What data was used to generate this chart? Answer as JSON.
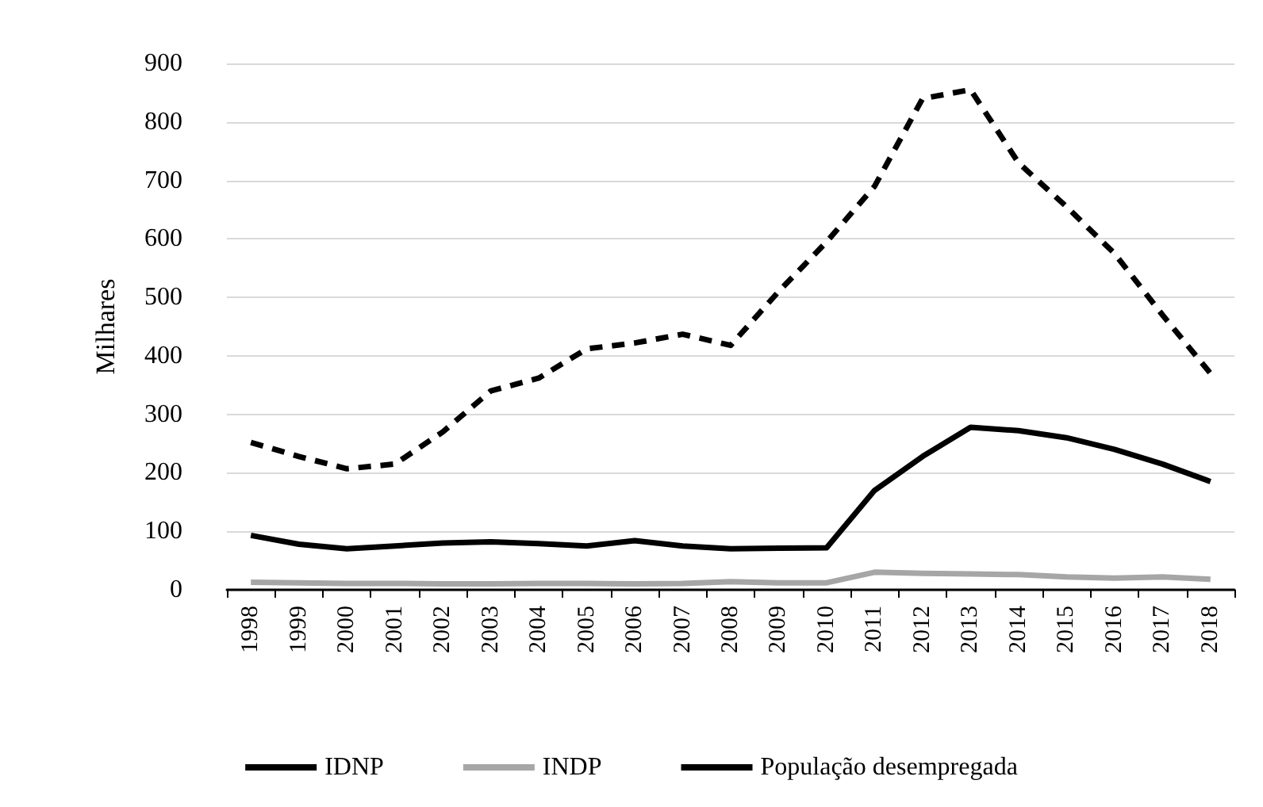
{
  "chart_data": {
    "type": "line",
    "ylabel": "Milhares",
    "categories": [
      "1998",
      "1999",
      "2000",
      "2001",
      "2002",
      "2003",
      "2004",
      "2005",
      "2006",
      "2007",
      "2008",
      "2009",
      "2010",
      "2011",
      "2012",
      "2013",
      "2014",
      "2015",
      "2016",
      "2017",
      "2018"
    ],
    "series": [
      {
        "name": "IDNP",
        "color": "#000000",
        "line_style": "solid",
        "values": [
          93,
          78,
          70,
          75,
          80,
          82,
          79,
          75,
          84,
          75,
          70,
          71,
          72,
          170,
          228,
          278,
          272,
          260,
          240,
          215,
          185
        ]
      },
      {
        "name": "INDP",
        "color": "#a6a6a6",
        "line_style": "solid",
        "values": [
          13,
          12,
          11,
          11,
          10,
          10,
          11,
          11,
          10,
          11,
          14,
          12,
          12,
          30,
          28,
          27,
          26,
          22,
          20,
          22,
          18
        ]
      },
      {
        "name": "População desempregada",
        "color": "#000000",
        "line_style": "dashed",
        "values": [
          252,
          228,
          207,
          215,
          270,
          340,
          362,
          412,
          422,
          437,
          418,
          510,
          595,
          690,
          840,
          855,
          730,
          655,
          575,
          470,
          370
        ]
      }
    ],
    "ylim": [
      0,
      900
    ],
    "yticks": [
      0,
      100,
      200,
      300,
      400,
      500,
      600,
      700,
      800,
      900
    ],
    "grid": "y",
    "legend": "bottom",
    "marker": "none"
  }
}
